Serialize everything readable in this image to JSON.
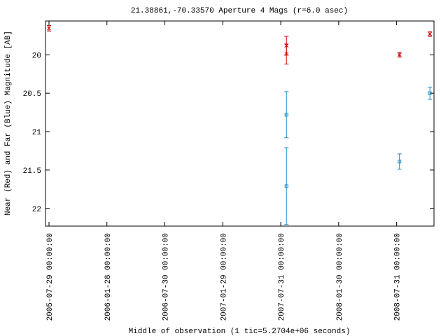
{
  "chart_data": {
    "type": "scatter",
    "title": "21.38861,-70.33570   Aperture 4 Mags (r=6.0 asec)",
    "x_label": "Middle of observation (1 tic=5.2704e+06 seconds)",
    "y_label": "Near (Red) and Far (Blue) Magnitude [AB]",
    "xlim": [
      "2005-07-18 00:00:00",
      "2008-11-26 00:00:00"
    ],
    "xticks": [
      "2005-07-29 00:00:00",
      "2006-01-28 00:00:00",
      "2006-07-30 00:00:00",
      "2007-01-29 00:00:00",
      "2007-07-31 00:00:00",
      "2008-01-30 00:00:00",
      "2008-07-31 00:00:00"
    ],
    "ylim": [
      19.56,
      22.23
    ],
    "y_inverted": true,
    "yticks": [
      20,
      20.5,
      21,
      21.5,
      22
    ],
    "series": [
      {
        "color": "#cc0000",
        "marker": "cross",
        "x": [
          "2005-07-29 00:00:00",
          "2007-08-18 00:00:00",
          "2007-08-18 00:00:00",
          "2008-08-09 00:00:00",
          "2008-11-13 00:00:00"
        ],
        "values": [
          19.655,
          19.88,
          19.99,
          20.0,
          19.73
        ],
        "errors": [
          0.035,
          0.12,
          0.13,
          0.03,
          0.03
        ]
      },
      {
        "color": "#1a8cc8",
        "marker": "square",
        "x": [
          "2007-08-18 00:00:00",
          "2007-08-18 00:00:00",
          "2008-08-09 00:00:00",
          "2008-11-13 00:00:00"
        ],
        "values": [
          20.78,
          21.71,
          21.39,
          20.5
        ],
        "errors": [
          0.3,
          0.5,
          0.1,
          0.08
        ]
      }
    ]
  }
}
